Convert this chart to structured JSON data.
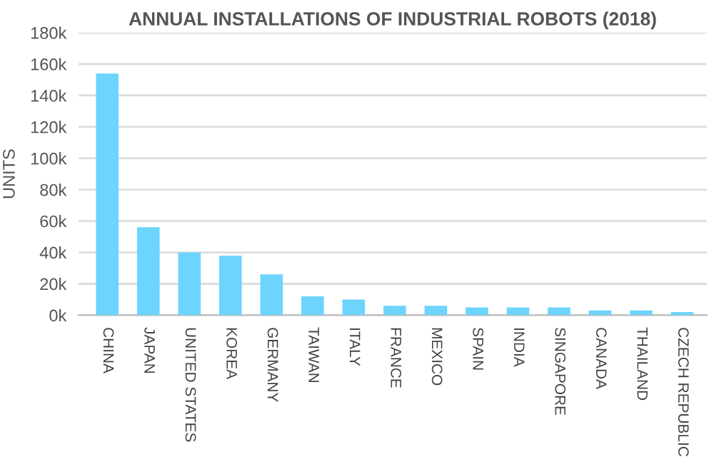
{
  "chart_data": {
    "type": "bar",
    "title": "ANNUAL INSTALLATIONS OF INDUSTRIAL ROBOTS (2018)",
    "ylabel": "UNITS",
    "categories": [
      "CHINA",
      "JAPAN",
      "UNITED STATES",
      "KOREA",
      "GERMANY",
      "TAIWAN",
      "ITALY",
      "FRANCE",
      "MEXICO",
      "SPAIN",
      "INDIA",
      "SINGAPORE",
      "CANADA",
      "THAILAND",
      "CZECH REPUBLIC"
    ],
    "values": [
      154000,
      56000,
      40000,
      38000,
      26000,
      12000,
      10000,
      6000,
      6000,
      5000,
      5000,
      5000,
      3000,
      3000,
      2000
    ],
    "color": "#6dd4fd",
    "ylim": [
      0,
      180000
    ],
    "yticks": [
      {
        "value": 0,
        "label": "0k"
      },
      {
        "value": 20000,
        "label": "20k"
      },
      {
        "value": 40000,
        "label": "40k"
      },
      {
        "value": 60000,
        "label": "60k"
      },
      {
        "value": 80000,
        "label": "80k"
      },
      {
        "value": 100000,
        "label": "100k"
      },
      {
        "value": 120000,
        "label": "120k"
      },
      {
        "value": 140000,
        "label": "140k"
      },
      {
        "value": 160000,
        "label": "160k"
      },
      {
        "value": 180000,
        "label": "180k"
      }
    ],
    "grid": "y",
    "legend": false
  }
}
